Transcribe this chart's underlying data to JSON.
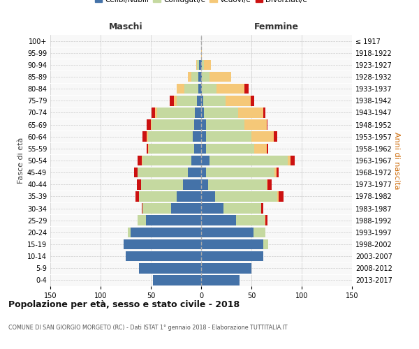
{
  "age_groups": [
    "0-4",
    "5-9",
    "10-14",
    "15-19",
    "20-24",
    "25-29",
    "30-34",
    "35-39",
    "40-44",
    "45-49",
    "50-54",
    "55-59",
    "60-64",
    "65-69",
    "70-74",
    "75-79",
    "80-84",
    "85-89",
    "90-94",
    "95-99",
    "100+"
  ],
  "birth_years": [
    "2013-2017",
    "2008-2012",
    "2003-2007",
    "1998-2002",
    "1993-1997",
    "1988-1992",
    "1983-1987",
    "1978-1982",
    "1973-1977",
    "1968-1972",
    "1963-1967",
    "1958-1962",
    "1953-1957",
    "1948-1952",
    "1943-1947",
    "1938-1942",
    "1933-1937",
    "1928-1932",
    "1923-1927",
    "1918-1922",
    "≤ 1917"
  ],
  "maschi": {
    "celibe": [
      48,
      62,
      75,
      77,
      70,
      55,
      30,
      24,
      18,
      13,
      10,
      7,
      8,
      7,
      6,
      4,
      3,
      3,
      2,
      0,
      0
    ],
    "coniugato": [
      0,
      0,
      0,
      0,
      3,
      8,
      28,
      38,
      42,
      50,
      48,
      45,
      45,
      42,
      38,
      20,
      14,
      7,
      2,
      0,
      0
    ],
    "vedovo": [
      0,
      0,
      0,
      0,
      0,
      0,
      0,
      0,
      0,
      0,
      1,
      1,
      1,
      1,
      2,
      3,
      7,
      3,
      1,
      0,
      0
    ],
    "divorziato": [
      0,
      0,
      0,
      0,
      0,
      0,
      1,
      3,
      4,
      4,
      4,
      1,
      4,
      4,
      3,
      4,
      0,
      0,
      0,
      0,
      0
    ]
  },
  "femmine": {
    "nubile": [
      38,
      50,
      62,
      62,
      52,
      35,
      22,
      14,
      7,
      5,
      8,
      5,
      5,
      5,
      3,
      2,
      1,
      1,
      1,
      0,
      0
    ],
    "coniugata": [
      0,
      0,
      0,
      5,
      12,
      28,
      38,
      62,
      58,
      68,
      78,
      48,
      45,
      38,
      34,
      22,
      14,
      7,
      2,
      0,
      0
    ],
    "vedova": [
      0,
      0,
      0,
      0,
      0,
      1,
      0,
      1,
      1,
      2,
      3,
      12,
      22,
      22,
      25,
      25,
      28,
      22,
      7,
      1,
      0
    ],
    "divorziata": [
      0,
      0,
      0,
      0,
      0,
      2,
      2,
      5,
      4,
      2,
      4,
      2,
      4,
      1,
      2,
      4,
      4,
      0,
      0,
      0,
      0
    ]
  },
  "colors": {
    "celibe": "#4472a8",
    "coniugato": "#c5d9a0",
    "vedovo": "#f5c878",
    "divorziato": "#cc1111"
  },
  "xlim": 150,
  "title": "Popolazione per età, sesso e stato civile - 2018",
  "subtitle": "COMUNE DI SAN GIORGIO MORGETO (RC) - Dati ISTAT 1° gennaio 2018 - Elaborazione TUTTITALIA.IT",
  "ylabel": "Fasce di età",
  "ylabel_right": "Anni di nascita"
}
